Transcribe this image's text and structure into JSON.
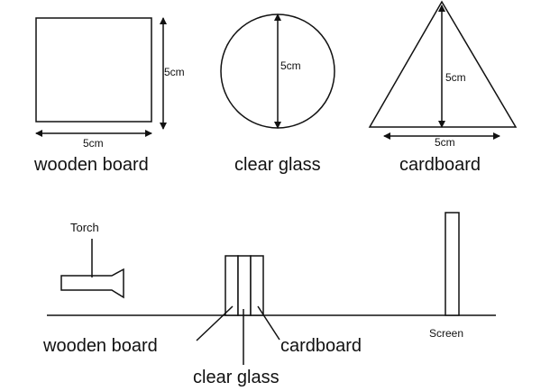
{
  "shapes": {
    "square": {
      "dimension_label": "5cm",
      "width_label": "5cm",
      "name": "wooden board"
    },
    "circle": {
      "dimension_label": "5cm",
      "name": "clear glass"
    },
    "triangle": {
      "dimension_label": "5cm",
      "width_label": "5cm",
      "name": "cardboard"
    }
  },
  "setup": {
    "torch_label": "Torch",
    "screen_label": "Screen",
    "labels": [
      "wooden board",
      "clear glass",
      "cardboard"
    ]
  }
}
